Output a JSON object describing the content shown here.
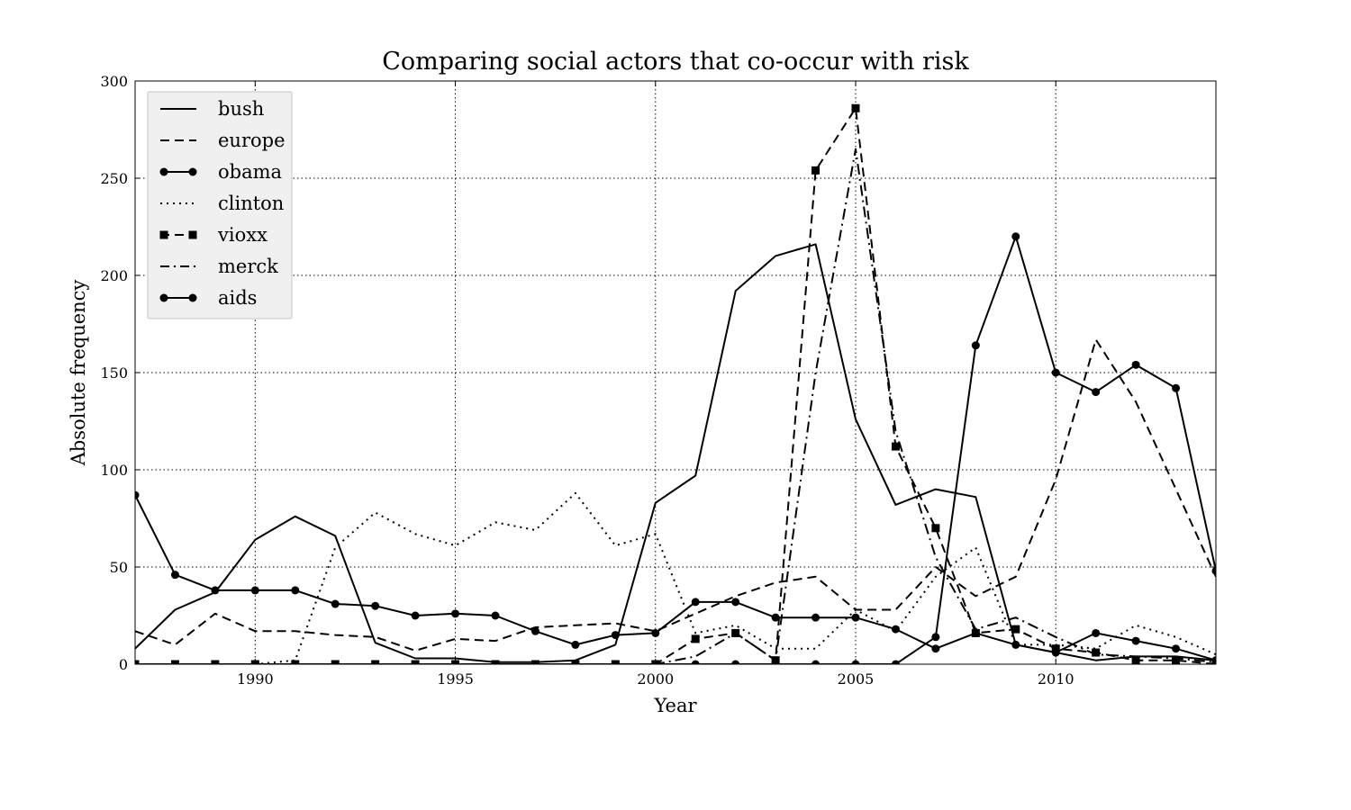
{
  "chart_data": {
    "type": "line",
    "title": "Comparing social actors that co-occur with risk",
    "xlabel": "Year",
    "ylabel": "Absolute frequency",
    "xlim": [
      1987,
      2014
    ],
    "ylim": [
      0,
      300
    ],
    "xticks": [
      1990,
      1995,
      2000,
      2005,
      2010
    ],
    "yticks": [
      0,
      50,
      100,
      150,
      200,
      250,
      300
    ],
    "grid": true,
    "legend_position": "top-left",
    "x": [
      1987,
      1988,
      1989,
      1990,
      1991,
      1992,
      1993,
      1994,
      1995,
      1996,
      1997,
      1998,
      1999,
      2000,
      2001,
      2002,
      2003,
      2004,
      2005,
      2006,
      2007,
      2008,
      2009,
      2010,
      2011,
      2012,
      2013,
      2014
    ],
    "series": [
      {
        "name": "bush",
        "style": "solid",
        "marker": "none",
        "values": [
          8,
          28,
          37,
          64,
          76,
          66,
          11,
          3,
          3,
          1,
          1,
          2,
          10,
          83,
          97,
          192,
          210,
          216,
          126,
          82,
          90,
          86,
          10,
          6,
          2,
          4,
          4,
          2
        ]
      },
      {
        "name": "europe",
        "style": "dashed",
        "marker": "none",
        "values": [
          17,
          10,
          26,
          17,
          17,
          15,
          14,
          7,
          13,
          12,
          19,
          20,
          21,
          17,
          26,
          35,
          42,
          45,
          28,
          28,
          50,
          35,
          45,
          95,
          167,
          135,
          90,
          45
        ]
      },
      {
        "name": "obama",
        "style": "solid",
        "marker": "circle",
        "values": [
          0,
          0,
          0,
          0,
          0,
          0,
          0,
          0,
          0,
          0,
          0,
          0,
          0,
          0,
          0,
          0,
          0,
          0,
          0,
          0,
          14,
          164,
          220,
          150,
          140,
          154,
          142,
          48
        ]
      },
      {
        "name": "clinton",
        "style": "dotted",
        "marker": "none",
        "values": [
          0,
          0,
          0,
          0,
          2,
          60,
          78,
          67,
          61,
          73,
          69,
          88,
          61,
          67,
          16,
          20,
          8,
          8,
          28,
          17,
          45,
          60,
          10,
          10,
          8,
          20,
          14,
          5
        ]
      },
      {
        "name": "vioxx",
        "style": "dashed",
        "marker": "square",
        "values": [
          0,
          0,
          0,
          0,
          0,
          0,
          0,
          0,
          0,
          0,
          0,
          0,
          0,
          0,
          13,
          16,
          2,
          254,
          286,
          112,
          70,
          16,
          18,
          8,
          6,
          2,
          2,
          0
        ]
      },
      {
        "name": "merck",
        "style": "dashdot",
        "marker": "none",
        "values": [
          0,
          0,
          0,
          0,
          0,
          0,
          0,
          0,
          0,
          0,
          0,
          0,
          0,
          0,
          4,
          16,
          2,
          150,
          265,
          120,
          55,
          18,
          24,
          14,
          5,
          4,
          3,
          1
        ]
      },
      {
        "name": "aids",
        "style": "solid",
        "marker": "circle",
        "values": [
          87,
          46,
          38,
          38,
          38,
          31,
          30,
          25,
          26,
          25,
          17,
          10,
          15,
          16,
          32,
          32,
          24,
          24,
          24,
          18,
          8,
          16,
          10,
          6,
          16,
          12,
          8,
          2
        ]
      }
    ]
  }
}
